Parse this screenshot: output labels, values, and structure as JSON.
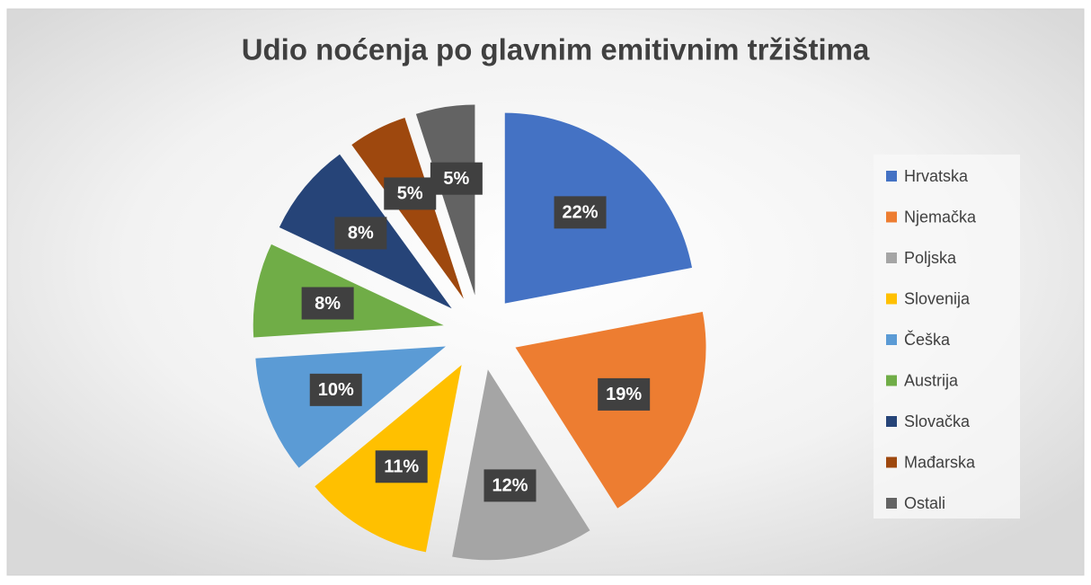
{
  "chart_data": {
    "type": "pie",
    "title": "Udio noćenja po glavnim emitivnim tržištima",
    "categories": [
      "Hrvatska",
      "Njemačka",
      "Poljska",
      "Slovenija",
      "Češka",
      "Austrija",
      "Slovačka",
      "Mađarska",
      "Ostali"
    ],
    "values": [
      22,
      19,
      12,
      11,
      10,
      8,
      8,
      5,
      5
    ],
    "value_labels": [
      "22%",
      "19%",
      "12%",
      "11%",
      "10%",
      "8%",
      "8%",
      "5%",
      "5%"
    ],
    "colors": [
      "#4472c4",
      "#ed7d31",
      "#a5a5a5",
      "#ffc000",
      "#5b9bd5",
      "#70ad47",
      "#264478",
      "#9e480e",
      "#636363"
    ],
    "legend": "right"
  }
}
